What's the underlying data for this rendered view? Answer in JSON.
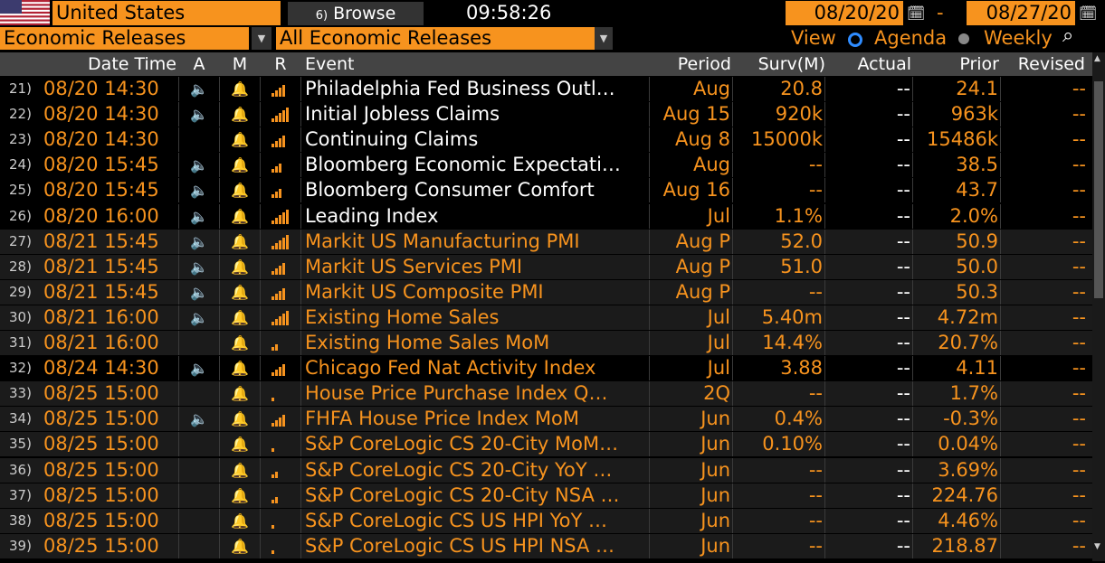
{
  "header": {
    "country": "United States",
    "browse_label": "Browse",
    "browse_hotkey": "6)",
    "clock": "09:58:26",
    "date_from": "08/20/20",
    "date_to": "08/27/20",
    "dash": "-"
  },
  "filters": {
    "source": "Economic Releases",
    "type": "All Economic Releases",
    "view_label": "View",
    "agenda_label": "Agenda",
    "weekly_label": "Weekly",
    "selected_view": "Agenda"
  },
  "colors": {
    "accent": "#f7931e",
    "radio_selected": "#2f8cff",
    "header_bg": "#444444"
  },
  "columns": {
    "datetime": "Date Time",
    "a": "A",
    "m": "M",
    "r": "R",
    "event": "Event",
    "period": "Period",
    "surv": "Surv(M)",
    "actual": "Actual",
    "prior": "Prior",
    "revised": "Revised"
  },
  "rows": [
    {
      "n": "21)",
      "dt": "08/20 14:30",
      "alert": true,
      "rel": 4,
      "event": "Philadelphia Fed Business Outl…",
      "period": "Aug",
      "surv": "20.8",
      "actual": "--",
      "prior": "24.1",
      "revised": "--",
      "style": "dark"
    },
    {
      "n": "22)",
      "dt": "08/20 14:30",
      "alert": true,
      "rel": 5,
      "event": "Initial Jobless Claims",
      "period": "Aug 15",
      "surv": "920k",
      "actual": "--",
      "prior": "963k",
      "revised": "--",
      "style": "dark"
    },
    {
      "n": "23)",
      "dt": "08/20 14:30",
      "alert": false,
      "rel": 4,
      "event": "Continuing Claims",
      "period": "Aug 8",
      "surv": "15000k",
      "actual": "--",
      "prior": "15486k",
      "revised": "--",
      "style": "dark"
    },
    {
      "n": "24)",
      "dt": "08/20 15:45",
      "alert": true,
      "rel": 3,
      "event": "Bloomberg Economic Expectati…",
      "period": "Aug",
      "surv": "--",
      "actual": "--",
      "prior": "38.5",
      "revised": "--",
      "style": "dark"
    },
    {
      "n": "25)",
      "dt": "08/20 15:45",
      "alert": true,
      "rel": 3,
      "event": "Bloomberg Consumer Comfort",
      "period": "Aug 16",
      "surv": "--",
      "actual": "--",
      "prior": "43.7",
      "revised": "--",
      "style": "dark"
    },
    {
      "n": "26)",
      "dt": "08/20 16:00",
      "alert": true,
      "rel": 5,
      "event": "Leading Index",
      "period": "Jul",
      "surv": "1.1%",
      "actual": "--",
      "prior": "2.0%",
      "revised": "--",
      "style": "dark"
    },
    {
      "n": "27)",
      "dt": "08/21 15:45",
      "alert": true,
      "rel": 5,
      "event": "Markit US Manufacturing PMI",
      "period": "Aug P",
      "surv": "52.0",
      "actual": "--",
      "prior": "50.9",
      "revised": "--",
      "style": "gray"
    },
    {
      "n": "28)",
      "dt": "08/21 15:45",
      "alert": true,
      "rel": 4,
      "event": "Markit US Services PMI",
      "period": "Aug P",
      "surv": "51.0",
      "actual": "--",
      "prior": "50.0",
      "revised": "--",
      "style": "gray"
    },
    {
      "n": "29)",
      "dt": "08/21 15:45",
      "alert": true,
      "rel": 4,
      "event": "Markit US Composite PMI",
      "period": "Aug P",
      "surv": "--",
      "actual": "--",
      "prior": "50.3",
      "revised": "--",
      "style": "gray"
    },
    {
      "n": "30)",
      "dt": "08/21 16:00",
      "alert": true,
      "rel": 5,
      "event": "Existing Home Sales",
      "period": "Jul",
      "surv": "5.40m",
      "actual": "--",
      "prior": "4.72m",
      "revised": "--",
      "style": "gray"
    },
    {
      "n": "31)",
      "dt": "08/21 16:00",
      "alert": false,
      "rel": 2,
      "event": "Existing Home Sales MoM",
      "period": "Jul",
      "surv": "14.4%",
      "actual": "--",
      "prior": "20.7%",
      "revised": "--",
      "style": "gray"
    },
    {
      "n": "32)",
      "dt": "08/24 14:30",
      "alert": true,
      "rel": 4,
      "event": "Chicago Fed Nat Activity Index",
      "period": "Jul",
      "surv": "3.88",
      "actual": "--",
      "prior": "4.11",
      "revised": "--",
      "style": "hl"
    },
    {
      "n": "33)",
      "dt": "08/25 15:00",
      "alert": false,
      "rel": 1,
      "event": "House Price Purchase Index Q…",
      "period": "2Q",
      "surv": "--",
      "actual": "--",
      "prior": "1.7%",
      "revised": "--",
      "style": "gray"
    },
    {
      "n": "34)",
      "dt": "08/25 15:00",
      "alert": true,
      "rel": 4,
      "event": "FHFA House Price Index MoM",
      "period": "Jun",
      "surv": "0.4%",
      "actual": "--",
      "prior": "-0.3%",
      "revised": "--",
      "style": "gray"
    },
    {
      "n": "35)",
      "dt": "08/25 15:00",
      "alert": false,
      "rel": 1,
      "event": "S&P CoreLogic CS 20-City MoM…",
      "period": "Jun",
      "surv": "0.10%",
      "actual": "--",
      "prior": "0.04%",
      "revised": "--",
      "style": "gray"
    },
    {
      "n": "36)",
      "dt": "08/25 15:00",
      "alert": false,
      "rel": 2,
      "event": "S&P CoreLogic CS 20-City YoY …",
      "period": "Jun",
      "surv": "--",
      "actual": "--",
      "prior": "3.69%",
      "revised": "--",
      "style": "gray"
    },
    {
      "n": "37)",
      "dt": "08/25 15:00",
      "alert": false,
      "rel": 2,
      "event": "S&P CoreLogic CS 20-City NSA …",
      "period": "Jun",
      "surv": "--",
      "actual": "--",
      "prior": "224.76",
      "revised": "--",
      "style": "gray"
    },
    {
      "n": "38)",
      "dt": "08/25 15:00",
      "alert": false,
      "rel": 1,
      "event": "S&P CoreLogic CS US HPI YoY …",
      "period": "Jun",
      "surv": "--",
      "actual": "--",
      "prior": "4.46%",
      "revised": "--",
      "style": "gray"
    },
    {
      "n": "39)",
      "dt": "08/25 15:00",
      "alert": false,
      "rel": 1,
      "event": "S&P CoreLogic CS US HPI NSA …",
      "period": "Jun",
      "surv": "--",
      "actual": "--",
      "prior": "218.87",
      "revised": "--",
      "style": "gray"
    }
  ]
}
